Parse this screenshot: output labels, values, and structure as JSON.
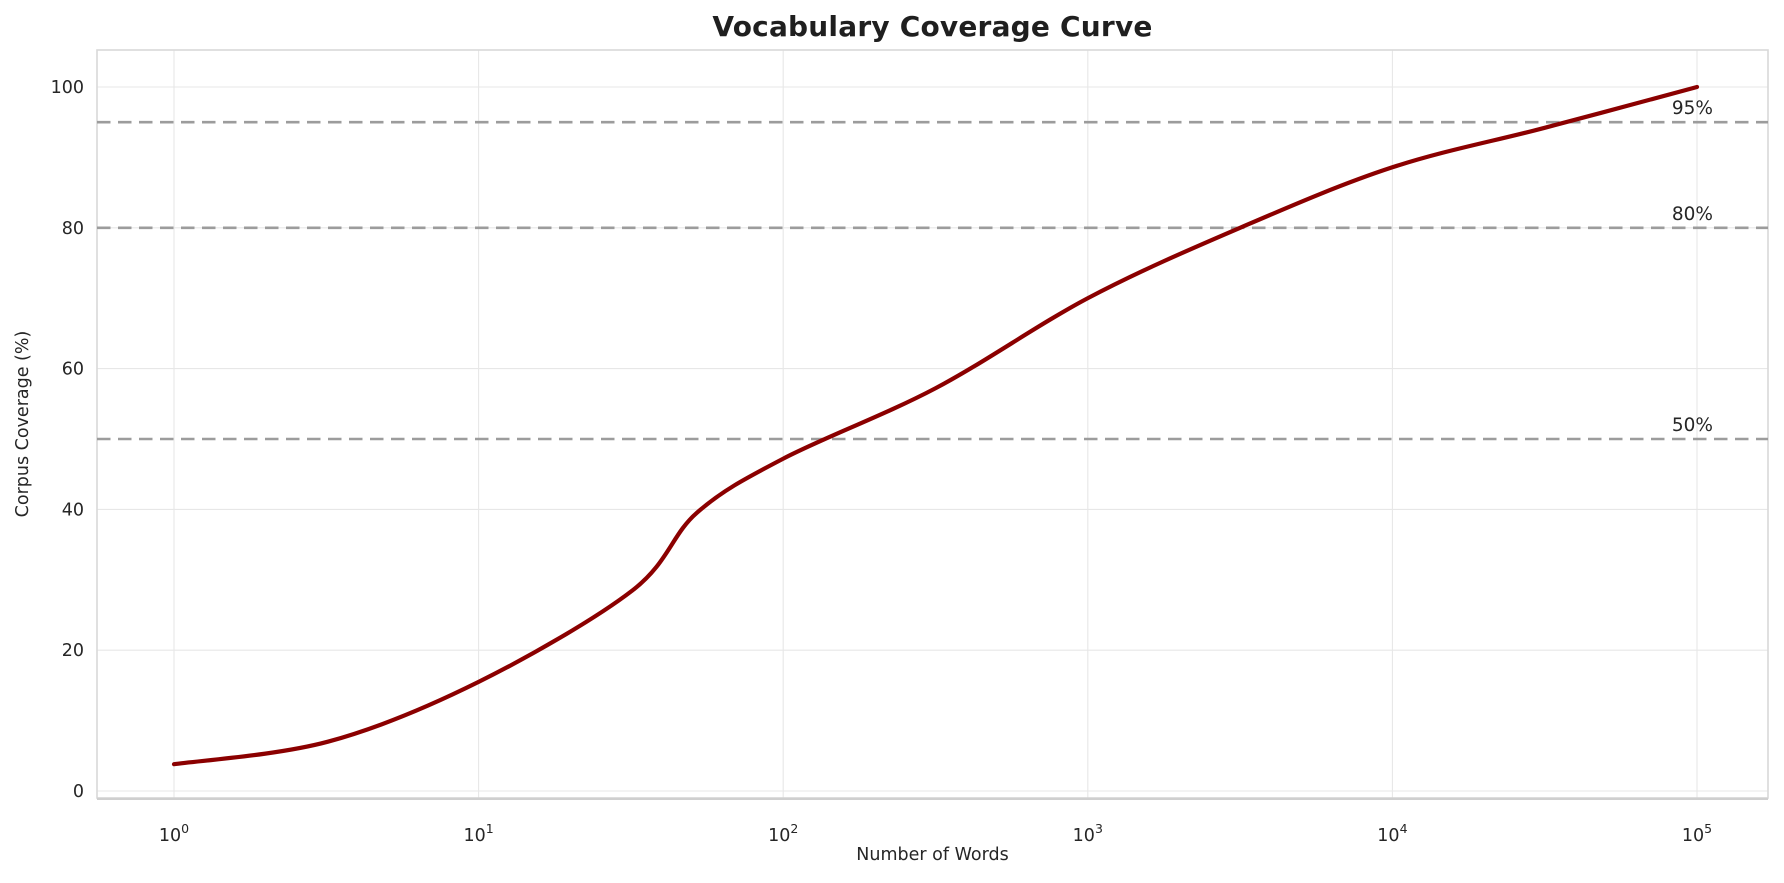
{
  "chart_data": {
    "type": "line",
    "title": "Vocabulary Coverage Curve",
    "xlabel": "Number of Words",
    "ylabel": "Corpus Coverage (%)",
    "x_scale": "log",
    "x_tick_base": "10",
    "x_tick_exponents": [
      0,
      1,
      2,
      3,
      4,
      5
    ],
    "y_ticks": [
      0,
      20,
      40,
      60,
      80,
      100
    ],
    "xlim_log10": [
      -0.25,
      5.25
    ],
    "ylim": [
      -1,
      105.3
    ],
    "grid": true,
    "legend": "none",
    "background_color": "#FFFFFF",
    "grid_color": "#E7E7E7",
    "spine_color": "#D9D9D9",
    "text_color": "#262626",
    "series": [
      {
        "name": "vocabulary-coverage",
        "color": "#8B0000",
        "line_width": 4.2,
        "points": [
          {
            "words": 1,
            "coverage_pct": 3.8
          },
          {
            "words": 3.2,
            "coverage_pct": 7.0
          },
          {
            "words": 10,
            "coverage_pct": 15.5
          },
          {
            "words": 32,
            "coverage_pct": 28.5
          },
          {
            "words": 52,
            "coverage_pct": 39.5
          },
          {
            "words": 100,
            "coverage_pct": 47.2
          },
          {
            "words": 316,
            "coverage_pct": 57.2
          },
          {
            "words": 1000,
            "coverage_pct": 70.0
          },
          {
            "words": 3162,
            "coverage_pct": 80.0
          },
          {
            "words": 10000,
            "coverage_pct": 88.6
          },
          {
            "words": 31623,
            "coverage_pct": 94.2
          },
          {
            "words": 100000,
            "coverage_pct": 100.0
          }
        ]
      }
    ],
    "threshold_lines": [
      {
        "value": 50,
        "label": "50%"
      },
      {
        "value": 80,
        "label": "80%"
      },
      {
        "value": 95,
        "label": "95%"
      }
    ],
    "threshold_color": "#9C9C9C"
  }
}
